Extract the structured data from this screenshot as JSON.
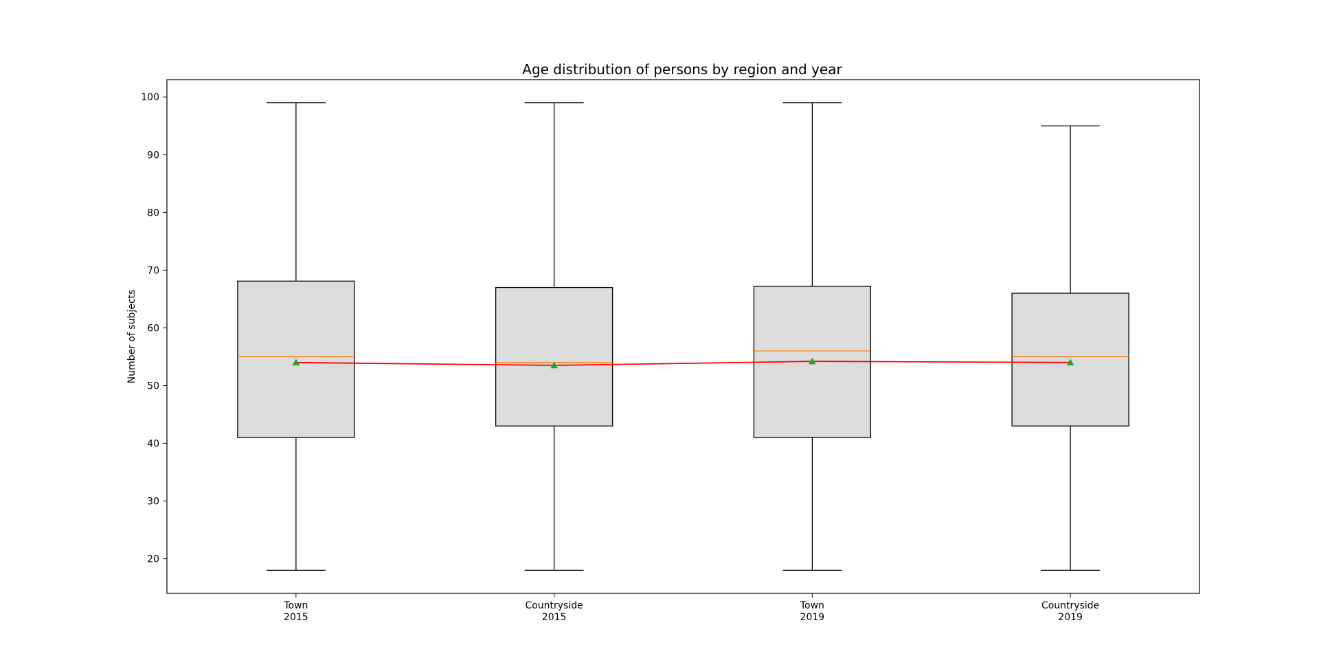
{
  "chart_data": {
    "type": "box",
    "title": "Age distribution of persons by region and year",
    "xlabel": "",
    "ylabel": "Number of subjects",
    "ylim": [
      14,
      103
    ],
    "yticks": [
      20,
      30,
      40,
      50,
      60,
      70,
      80,
      90,
      100
    ],
    "grid": false,
    "categories": [
      {
        "line1": "Town",
        "line2": "2015"
      },
      {
        "line1": "Countryside",
        "line2": "2015"
      },
      {
        "line1": "Town",
        "line2": "2019"
      },
      {
        "line1": "Countryside",
        "line2": "2019"
      }
    ],
    "boxes": [
      {
        "whisker_low": 18,
        "q1": 41,
        "median": 55,
        "q3": 68.1,
        "whisker_high": 99,
        "mean": 54
      },
      {
        "whisker_low": 18,
        "q1": 43,
        "median": 54,
        "q3": 67,
        "whisker_high": 99,
        "mean": 53.5
      },
      {
        "whisker_low": 18,
        "q1": 41,
        "median": 56,
        "q3": 67.2,
        "whisker_high": 99,
        "mean": 54.2
      },
      {
        "whisker_low": 18,
        "q1": 43,
        "median": 55,
        "q3": 66,
        "whisker_high": 95,
        "mean": 54
      }
    ],
    "colors": {
      "box_fill": "#dcdcdc",
      "box_edge": "#000000",
      "median": "#ff7f0e",
      "mean_marker": "#2ca02c",
      "mean_line": "#ff0000"
    }
  }
}
